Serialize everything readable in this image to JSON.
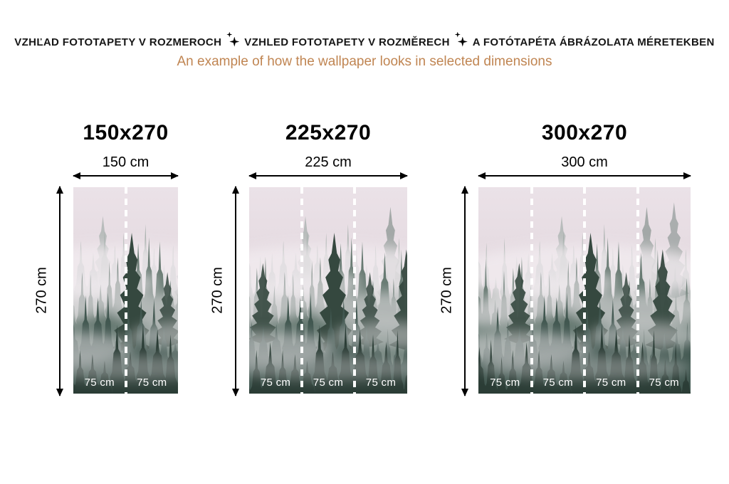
{
  "header": {
    "title_parts": [
      "VZHĽAD FOTOTAPETY V ROZMEROCH",
      "VZHLED FOTOTAPETY V ROZMĚRECH",
      "A FOTÓTAPÉTA ÁBRÁZOLATA MÉRETEKBEN"
    ],
    "separator_icon": "sparkle-icon",
    "title_color": "#161616",
    "subtitle": "An example of how the wallpaper looks in selected dimensions",
    "subtitle_color": "#c08552"
  },
  "figures": [
    {
      "title": "150x270",
      "width_label": "150 cm",
      "height_label": "270 cm",
      "panel_labels": [
        "75 cm",
        "75 cm"
      ]
    },
    {
      "title": "225x270",
      "width_label": "225 cm",
      "height_label": "270 cm",
      "panel_labels": [
        "75 cm",
        "75 cm",
        "75 cm"
      ]
    },
    {
      "title": "300x270",
      "width_label": "300 cm",
      "height_label": "270 cm",
      "panel_labels": [
        "75 cm",
        "75 cm",
        "75 cm",
        "75 cm"
      ]
    }
  ],
  "scene": {
    "photo_alt": "foggy coniferous forest",
    "divider_color": "#ffffff",
    "panel_label_color": "#ffffff",
    "arrow_color": "#000000",
    "sky_top": "#ebe2e8",
    "sky_mid": "#e1d6dc",
    "sky_bottom": "#cfc3ca",
    "fog": "#f2ecf0",
    "tree_far": "#92a09a",
    "tree_mid": "#60746c",
    "tree_hero": "#35483f",
    "tree_near": "#415750",
    "tree_front": "#2b3d36"
  }
}
